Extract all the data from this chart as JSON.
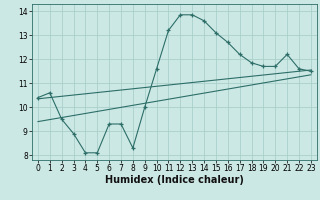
{
  "title": "",
  "xlabel": "Humidex (Indice chaleur)",
  "ylabel": "",
  "bg_color": "#cce8e4",
  "line_color": "#2d6e68",
  "grid_color": "#aad0cc",
  "curve_x": [
    0,
    1,
    2,
    3,
    4,
    5,
    6,
    7,
    8,
    9,
    10,
    11,
    12,
    13,
    14,
    15,
    16,
    17,
    18,
    19,
    20,
    21,
    22,
    23
  ],
  "curve_y": [
    10.4,
    10.6,
    9.5,
    8.9,
    8.1,
    8.1,
    9.3,
    9.3,
    8.3,
    10.0,
    11.6,
    13.2,
    13.85,
    13.85,
    13.6,
    13.1,
    12.7,
    12.2,
    11.85,
    11.7,
    11.7,
    12.2,
    11.6,
    11.5
  ],
  "line1_x": [
    0,
    23
  ],
  "line1_y": [
    10.35,
    11.55
  ],
  "line2_x": [
    0,
    23
  ],
  "line2_y": [
    9.4,
    11.35
  ],
  "xlim": [
    -0.5,
    23.5
  ],
  "ylim": [
    7.8,
    14.3
  ],
  "xticks": [
    0,
    1,
    2,
    3,
    4,
    5,
    6,
    7,
    8,
    9,
    10,
    11,
    12,
    13,
    14,
    15,
    16,
    17,
    18,
    19,
    20,
    21,
    22,
    23
  ],
  "yticks": [
    8,
    9,
    10,
    11,
    12,
    13,
    14
  ],
  "tick_fontsize": 5.5,
  "xlabel_fontsize": 7.0
}
